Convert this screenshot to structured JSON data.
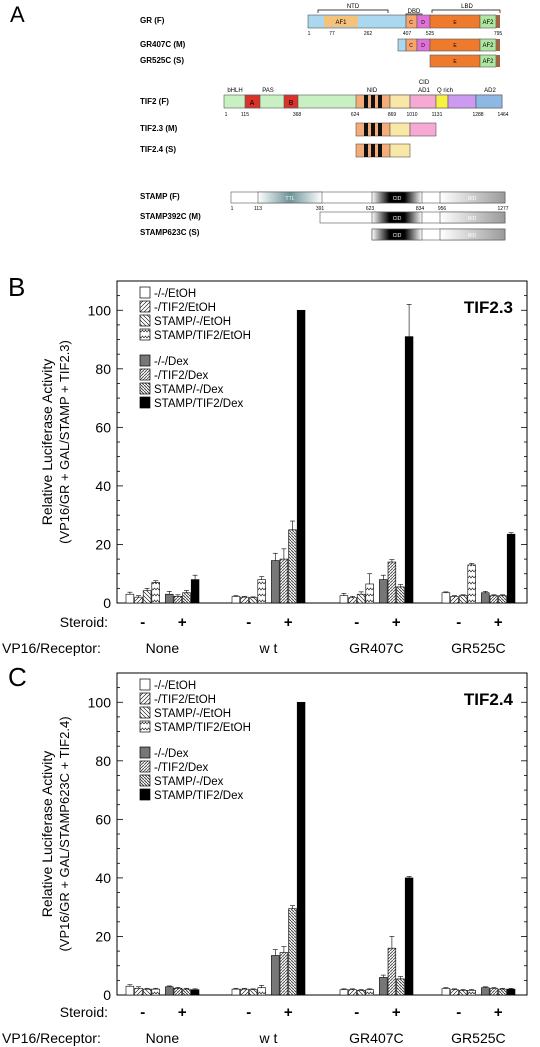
{
  "panel_labels": [
    "A",
    "B",
    "C"
  ],
  "diagram": {
    "groups": [
      {
        "constructs": [
          {
            "label": "GR (F)",
            "domains": [
              "AF1",
              "C",
              "D",
              "E",
              "AF2"
            ],
            "positions": [
              "1",
              "77",
              "262",
              "407",
              "525",
              "795"
            ]
          },
          {
            "label": "GR407C (M)",
            "domains": [
              "C",
              "D",
              "E",
              "AF2"
            ]
          },
          {
            "label": "GR525C (S)",
            "domains": [
              "E",
              "AF2"
            ]
          }
        ],
        "region_labels": [
          "NTD",
          "DBD",
          "LBD"
        ]
      },
      {
        "constructs": [
          {
            "label": "TIF2 (F)",
            "domains": [
              "A",
              "B"
            ],
            "positions": [
              "1",
              "115",
              "368",
              "624",
              "869",
              "1010",
              "1131",
              "1288",
              "1464"
            ]
          },
          {
            "label": "TIF2.3 (M)",
            "domains": []
          },
          {
            "label": "TIF2.4 (S)",
            "domains": []
          }
        ],
        "region_labels": [
          "bHLH",
          "PAS",
          "NID",
          "CID",
          "AD1",
          "Q rich",
          "AD2"
        ]
      },
      {
        "constructs": [
          {
            "label": "STAMP (F)",
            "domains": [
              "TTL",
              "CID",
              "RID"
            ],
            "positions": [
              "1",
              "113",
              "391",
              "623",
              "834",
              "956",
              "1277"
            ]
          },
          {
            "label": "STAMP392C (M)",
            "domains": [
              "CID",
              "RID"
            ]
          },
          {
            "label": "STAMP623C (S)",
            "domains": [
              "CID",
              "RID"
            ]
          }
        ]
      }
    ]
  },
  "chart_data": [
    {
      "type": "bar",
      "panel": "B",
      "annotation": "TIF2.3",
      "ylabel": "Relative Luciferase Activity",
      "ylabel2": "(VP16/GR + GAL/STAMP + TIF2.3)",
      "ylim": [
        0,
        110
      ],
      "yticks": [
        0,
        20,
        40,
        60,
        80,
        100
      ],
      "row_label_steroid": "Steroid:",
      "row_label_receptor": "VP16/Receptor:",
      "steroid_marks": [
        "-",
        "+"
      ],
      "categories": [
        "None",
        "w t",
        "GR407C",
        "GR525C"
      ],
      "series": [
        {
          "name": "-/-/EtOH",
          "values": [
            3,
            2.2,
            2.5,
            3.5
          ],
          "errors": [
            0.7,
            0.3,
            0.8,
            0.3
          ]
        },
        {
          "name": "-/TIF2/EtOH",
          "values": [
            2,
            2,
            1.8,
            2.2
          ],
          "errors": [
            0.5,
            0.3,
            0.5,
            0.3
          ]
        },
        {
          "name": "STAMP/-/EtOH",
          "values": [
            4.2,
            1.8,
            3,
            2.5
          ],
          "errors": [
            0.8,
            0.3,
            0.8,
            0.3
          ]
        },
        {
          "name": "STAMP/TIF2/EtOH",
          "values": [
            7,
            8,
            6.5,
            13
          ],
          "errors": [
            0.6,
            1,
            3.5,
            0.5
          ]
        },
        {
          "name": "-/-/Dex",
          "values": [
            3,
            14.5,
            8,
            3.5
          ],
          "errors": [
            1,
            2.5,
            1.5,
            0.5
          ]
        },
        {
          "name": "-/TIF2/Dex",
          "values": [
            2.3,
            15,
            14,
            2.5
          ],
          "errors": [
            0.5,
            3.5,
            0.8,
            0.3
          ]
        },
        {
          "name": "STAMP/-/Dex",
          "values": [
            3.5,
            25,
            5.5,
            2.5
          ],
          "errors": [
            0.8,
            3,
            0.8,
            0.3
          ]
        },
        {
          "name": "STAMP/TIF2/Dex",
          "values": [
            8,
            100,
            91,
            23.5
          ],
          "errors": [
            1.5,
            0,
            11,
            0.5
          ]
        }
      ]
    },
    {
      "type": "bar",
      "panel": "C",
      "annotation": "TIF2.4",
      "ylabel": "Relative Luciferase Activity",
      "ylabel2": "(VP16/GR + GAL/STAMP623C + TIF2.4)",
      "ylim": [
        0,
        110
      ],
      "yticks": [
        0,
        20,
        40,
        60,
        80,
        100
      ],
      "row_label_steroid": "Steroid:",
      "row_label_receptor": "VP16/Receptor:",
      "steroid_marks": [
        "-",
        "+"
      ],
      "categories": [
        "None",
        "w t",
        "GR407C",
        "GR525C"
      ],
      "series": [
        {
          "name": "-/-/EtOH",
          "values": [
            3,
            2,
            1.8,
            2.2
          ],
          "errors": [
            0.5,
            0.3,
            0.3,
            0.3
          ]
        },
        {
          "name": "-/TIF2/EtOH",
          "values": [
            2.3,
            2,
            1.8,
            1.8
          ],
          "errors": [
            0.5,
            0.3,
            0.3,
            0.3
          ]
        },
        {
          "name": "STAMP/-/EtOH",
          "values": [
            2,
            1.8,
            1.6,
            1.6
          ],
          "errors": [
            0.3,
            0.3,
            0.3,
            0.3
          ]
        },
        {
          "name": "STAMP/TIF2/EtOH",
          "values": [
            2,
            2.5,
            1.8,
            1.6
          ],
          "errors": [
            0.3,
            0.8,
            0.3,
            0.3
          ]
        },
        {
          "name": "-/-/Dex",
          "values": [
            2.8,
            13.5,
            6,
            2.5
          ],
          "errors": [
            0.3,
            2,
            0.8,
            0.3
          ]
        },
        {
          "name": "-/TIF2/Dex",
          "values": [
            2.3,
            14.5,
            16,
            2.2
          ],
          "errors": [
            0.3,
            2,
            4,
            0.3
          ]
        },
        {
          "name": "STAMP/-/Dex",
          "values": [
            2,
            29.5,
            5.5,
            2
          ],
          "errors": [
            0.3,
            1,
            0.8,
            0.3
          ]
        },
        {
          "name": "STAMP/TIF2/Dex",
          "values": [
            1.8,
            100,
            40,
            2
          ],
          "errors": [
            0.3,
            0,
            0.5,
            0.3
          ]
        }
      ]
    }
  ],
  "colors": {
    "ntd": "#a9d8ef",
    "af1": "#f4c27a",
    "c": "#f7a56c",
    "d": "#e071d9",
    "e": "#f07a2c",
    "af2": "#aee6a0",
    "lbd_end": "#a06440",
    "tif_light": "#c9f0c2",
    "ahelix": "#d9322a",
    "nid": "#f4ad78",
    "ad1": "#f8e7a6",
    "cid_pink": "#f6a9d2",
    "q_yellow": "#f5f245",
    "q_purple": "#cc9af0",
    "ad2": "#8eb8e4",
    "stamp_white": "#ffffff",
    "ttl": "#6e9498",
    "cid_black": "#111111",
    "rid": "#aaaaaa",
    "bar_dark": "#777777",
    "bar_black": "#000000"
  }
}
